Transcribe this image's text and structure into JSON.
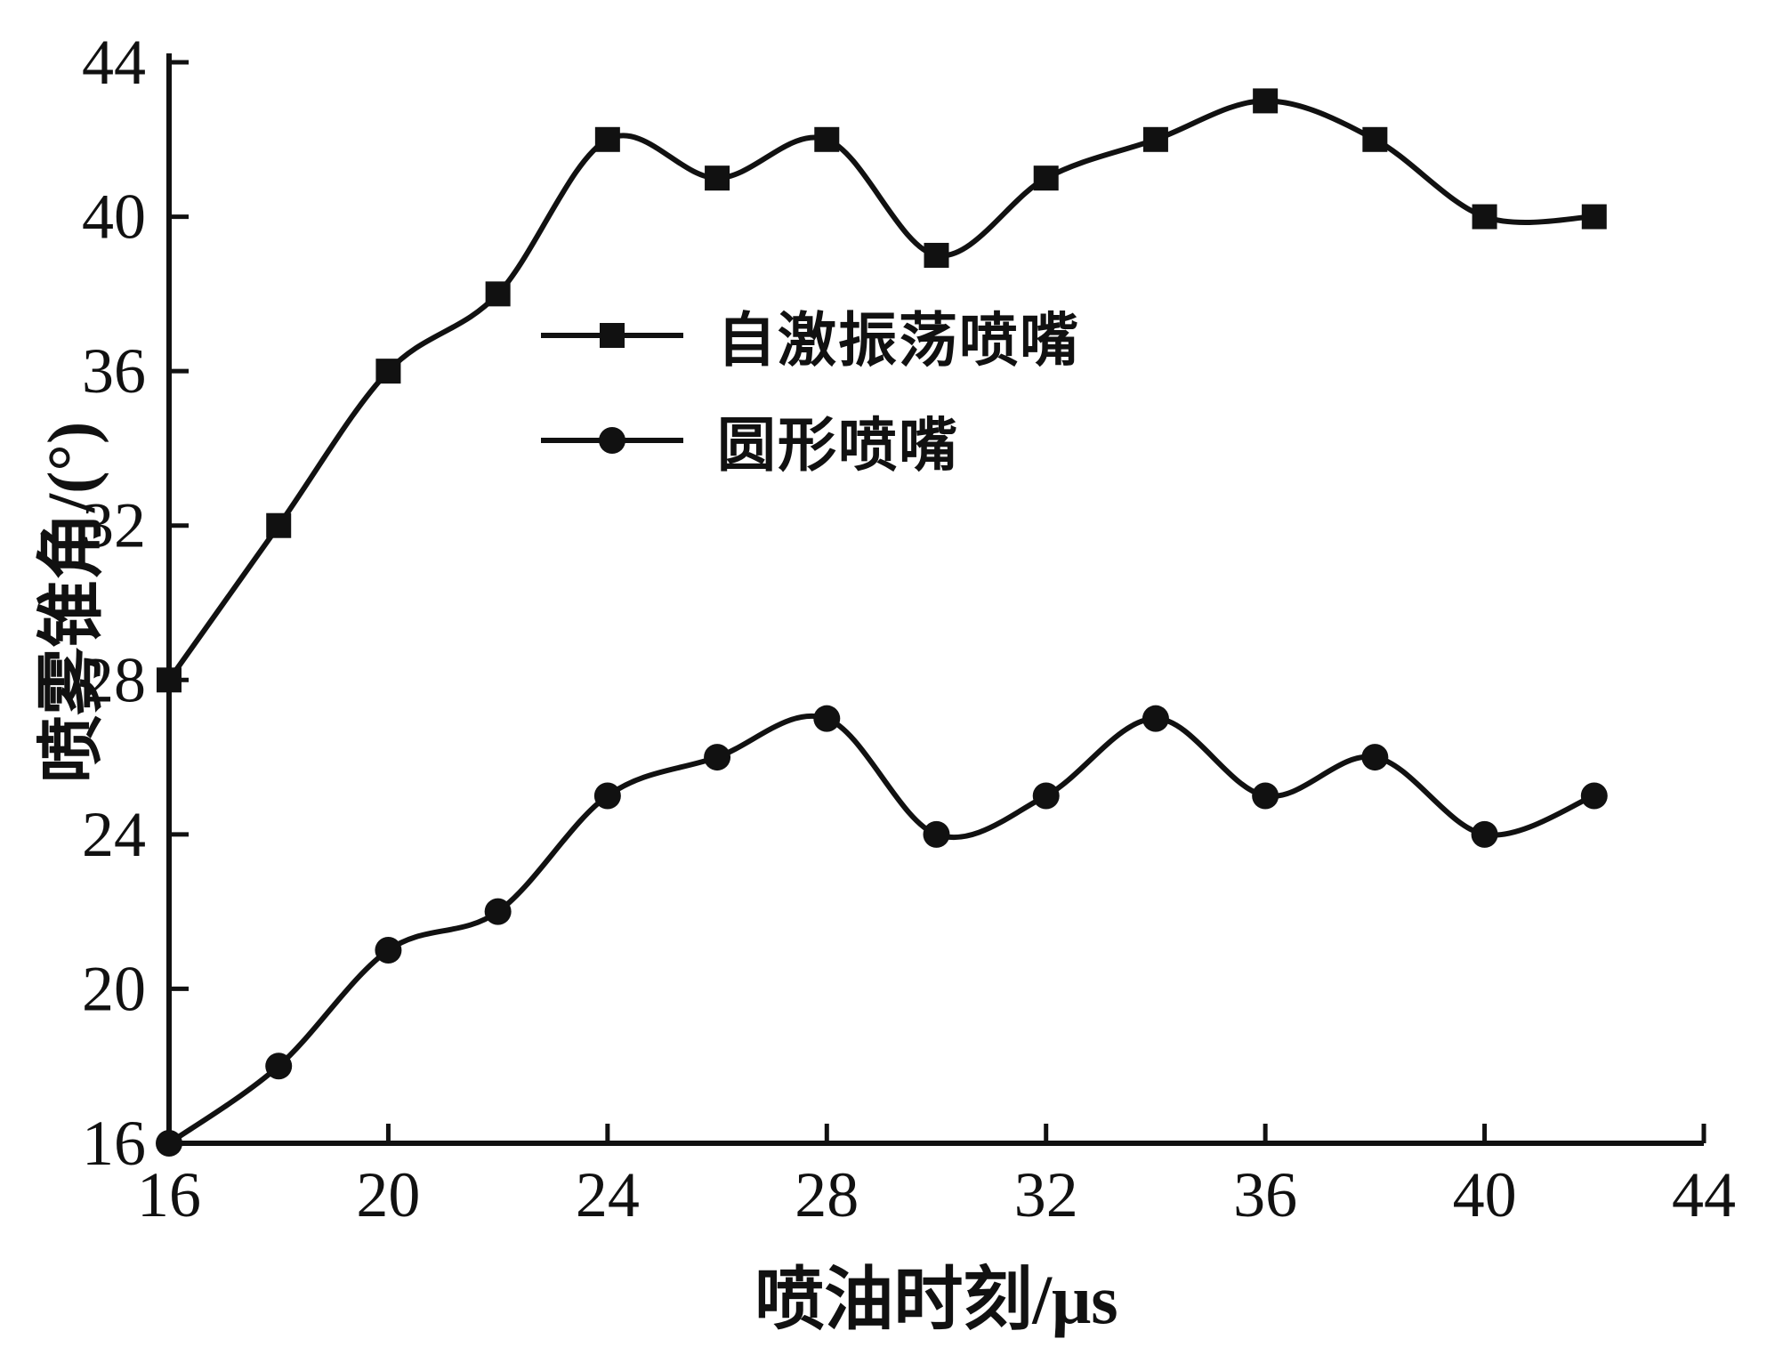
{
  "chart_data": {
    "type": "line",
    "title": "",
    "xlabel": "喷油时刻/μs",
    "ylabel": "喷雾锥角/(°)",
    "xlim": [
      16,
      44
    ],
    "ylim": [
      16,
      44
    ],
    "xticks": [
      "16",
      "20",
      "24",
      "28",
      "32",
      "36",
      "40",
      "44"
    ],
    "yticks": [
      "16",
      "20",
      "24",
      "28",
      "32",
      "36",
      "40",
      "44"
    ],
    "grid": false,
    "legend_position": "inside upper-center",
    "line_color": "#111111",
    "x": [
      16,
      18,
      20,
      22,
      24,
      26,
      28,
      30,
      32,
      34,
      36,
      38,
      40,
      42
    ],
    "series": [
      {
        "name": "自激振荡喷嘴",
        "marker": "square",
        "color": "#111111",
        "values": [
          28,
          32,
          36,
          38,
          42,
          41,
          42,
          39,
          41,
          42,
          43,
          42,
          40,
          40
        ]
      },
      {
        "name": "圆形喷嘴",
        "marker": "circle",
        "color": "#111111",
        "values": [
          16,
          18,
          21,
          22,
          25,
          26,
          27,
          24,
          25,
          27,
          25,
          26,
          24,
          25
        ]
      }
    ]
  }
}
